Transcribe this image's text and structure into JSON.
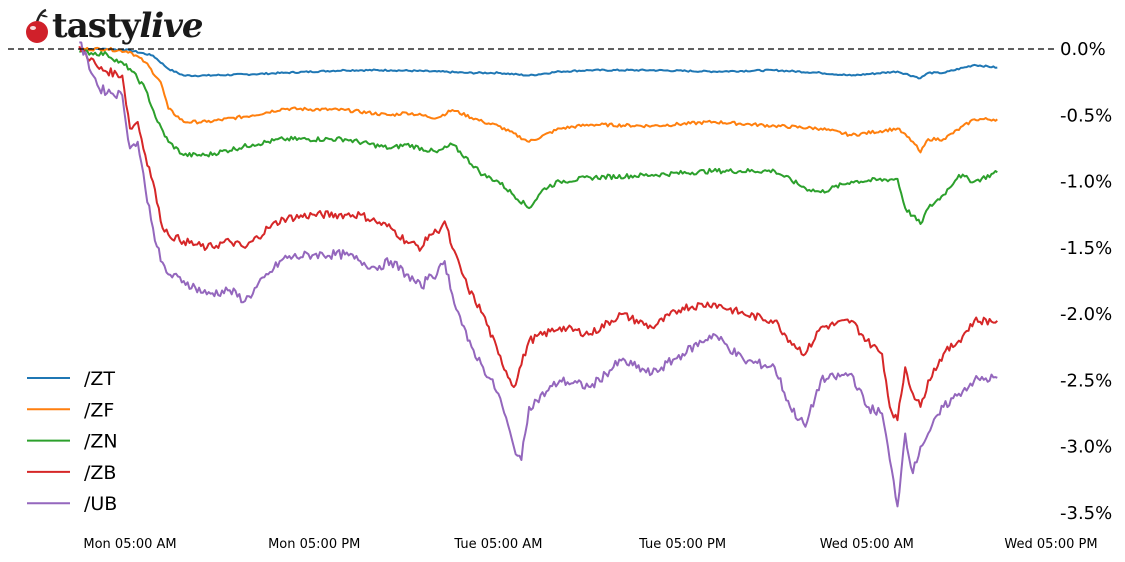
{
  "brand": {
    "logo_text_a": "tasty",
    "logo_text_b": "live",
    "icon": "cherry-icon"
  },
  "chart_data": {
    "type": "line",
    "title": "",
    "xlabel": "",
    "ylabel": "",
    "x_ticks": [
      "Mon 05:00 AM",
      "Mon 05:00 PM",
      "Tue 05:00 AM",
      "Tue 05:00 PM",
      "Wed 05:00 AM",
      "Wed 05:00 PM"
    ],
    "x_tick_hours": [
      0,
      12,
      24,
      36,
      48,
      60
    ],
    "xlim_hours": [
      -3.3,
      56.5
    ],
    "y_ticks": [
      "0.0%",
      "-0.5%",
      "-1.0%",
      "-1.5%",
      "-2.0%",
      "-2.5%",
      "-3.0%",
      "-3.5%"
    ],
    "y_tick_values": [
      0.0,
      -0.5,
      -1.0,
      -1.5,
      -2.0,
      -2.5,
      -3.0,
      -3.5
    ],
    "ylim": [
      -3.5,
      0.0
    ],
    "reference_line": {
      "value": 0.0,
      "style": "dashed"
    },
    "grid": false,
    "legend_position": "lower-left",
    "series": [
      {
        "name": "/ZT",
        "color": "#1f77b4",
        "x": [
          -3.3,
          -1.5,
          0,
          1.5,
          2.5,
          3.5,
          5,
          8,
          10,
          14,
          17,
          20,
          22,
          24,
          26,
          28,
          30,
          34,
          38,
          42,
          45,
          47,
          50,
          51.5,
          52,
          53,
          55,
          56.5
        ],
        "values": [
          0.0,
          0.0,
          -0.01,
          -0.05,
          -0.15,
          -0.2,
          -0.2,
          -0.19,
          -0.18,
          -0.16,
          -0.16,
          -0.17,
          -0.18,
          -0.18,
          -0.2,
          -0.17,
          -0.16,
          -0.16,
          -0.17,
          -0.16,
          -0.18,
          -0.2,
          -0.17,
          -0.22,
          -0.18,
          -0.18,
          -0.12,
          -0.14
        ]
      },
      {
        "name": "/ZF",
        "color": "#ff7f0e",
        "x": [
          -3.3,
          -1.5,
          0,
          1,
          2,
          2.5,
          3.5,
          5,
          8,
          10,
          14,
          17,
          18,
          20,
          21,
          23,
          24,
          26,
          28,
          30,
          34,
          38,
          42,
          45,
          47,
          50,
          51,
          51.5,
          52,
          53,
          55,
          56.5
        ],
        "values": [
          0.0,
          0.0,
          -0.02,
          -0.1,
          -0.25,
          -0.45,
          -0.55,
          -0.55,
          -0.5,
          -0.45,
          -0.46,
          -0.5,
          -0.48,
          -0.52,
          -0.46,
          -0.55,
          -0.58,
          -0.7,
          -0.6,
          -0.57,
          -0.58,
          -0.55,
          -0.58,
          -0.6,
          -0.65,
          -0.6,
          -0.7,
          -0.78,
          -0.68,
          -0.68,
          -0.53,
          -0.53
        ]
      },
      {
        "name": "/ZN",
        "color": "#2ca02c",
        "x": [
          -3.3,
          -1.5,
          0,
          1,
          1.8,
          2.5,
          3.5,
          5,
          8,
          10,
          14,
          17,
          18,
          20,
          21,
          23,
          24,
          26,
          27,
          28,
          30,
          34,
          38,
          42,
          44,
          45,
          47,
          50,
          50.5,
          51.5,
          52,
          53,
          54,
          55,
          56.5
        ],
        "values": [
          -0.02,
          -0.04,
          -0.15,
          -0.3,
          -0.55,
          -0.7,
          -0.8,
          -0.8,
          -0.72,
          -0.68,
          -0.68,
          -0.75,
          -0.72,
          -0.78,
          -0.72,
          -0.95,
          -1.0,
          -1.2,
          -1.05,
          -1.0,
          -0.97,
          -0.95,
          -0.92,
          -0.92,
          -1.05,
          -1.08,
          -1.0,
          -0.98,
          -1.2,
          -1.32,
          -1.2,
          -1.1,
          -0.95,
          -1.0,
          -0.93
        ]
      },
      {
        "name": "/ZB",
        "color": "#d62728",
        "x": [
          -3.3,
          -2,
          -0.5,
          0,
          0.5,
          1,
          1.5,
          2,
          2.5,
          3.5,
          5,
          6.5,
          7.5,
          9,
          10,
          12,
          14,
          15,
          16,
          17,
          18,
          19,
          19.5,
          20,
          20.5,
          21,
          22,
          23,
          24,
          25,
          26,
          28,
          30,
          32,
          34,
          36,
          38,
          40,
          42,
          43,
          44,
          45,
          47,
          48,
          49,
          49.5,
          50,
          50.5,
          51,
          51.5,
          52,
          53,
          54,
          55,
          56.5
        ],
        "values": [
          0.02,
          -0.15,
          -0.2,
          -0.6,
          -0.55,
          -0.8,
          -1.0,
          -1.3,
          -1.4,
          -1.45,
          -1.5,
          -1.45,
          -1.5,
          -1.35,
          -1.28,
          -1.25,
          -1.25,
          -1.25,
          -1.3,
          -1.35,
          -1.45,
          -1.5,
          -1.4,
          -1.38,
          -1.3,
          -1.5,
          -1.8,
          -2.0,
          -2.3,
          -2.55,
          -2.2,
          -2.1,
          -2.15,
          -2.0,
          -2.1,
          -1.95,
          -1.92,
          -2.0,
          -2.05,
          -2.2,
          -2.3,
          -2.1,
          -2.05,
          -2.2,
          -2.3,
          -2.7,
          -2.8,
          -2.4,
          -2.6,
          -2.7,
          -2.5,
          -2.3,
          -2.2,
          -2.05,
          -2.05
        ]
      },
      {
        "name": "/UB",
        "color": "#9467bd",
        "x": [
          -3.3,
          -2,
          -0.5,
          0,
          0.5,
          1,
          1.5,
          2,
          2.5,
          3.5,
          5,
          6.5,
          7.5,
          9,
          10,
          12,
          14,
          15,
          16,
          17,
          18,
          19,
          19.5,
          20,
          20.5,
          21,
          22,
          23,
          24,
          25,
          25.5,
          26,
          28,
          30,
          32,
          34,
          36,
          38,
          40,
          42,
          43,
          44,
          45,
          47,
          48,
          49,
          49.5,
          50,
          50.5,
          51,
          51.5,
          52,
          53,
          54,
          55,
          56.5
        ],
        "values": [
          0.05,
          -0.3,
          -0.35,
          -0.75,
          -0.7,
          -1.05,
          -1.35,
          -1.6,
          -1.7,
          -1.75,
          -1.85,
          -1.82,
          -1.9,
          -1.7,
          -1.58,
          -1.55,
          -1.55,
          -1.6,
          -1.65,
          -1.6,
          -1.7,
          -1.8,
          -1.7,
          -1.7,
          -1.6,
          -1.85,
          -2.2,
          -2.4,
          -2.6,
          -3.0,
          -3.1,
          -2.7,
          -2.5,
          -2.55,
          -2.35,
          -2.45,
          -2.3,
          -2.15,
          -2.35,
          -2.4,
          -2.7,
          -2.85,
          -2.5,
          -2.45,
          -2.7,
          -2.75,
          -3.1,
          -3.45,
          -2.9,
          -3.2,
          -3.0,
          -2.9,
          -2.7,
          -2.6,
          -2.5,
          -2.48
        ]
      }
    ]
  }
}
